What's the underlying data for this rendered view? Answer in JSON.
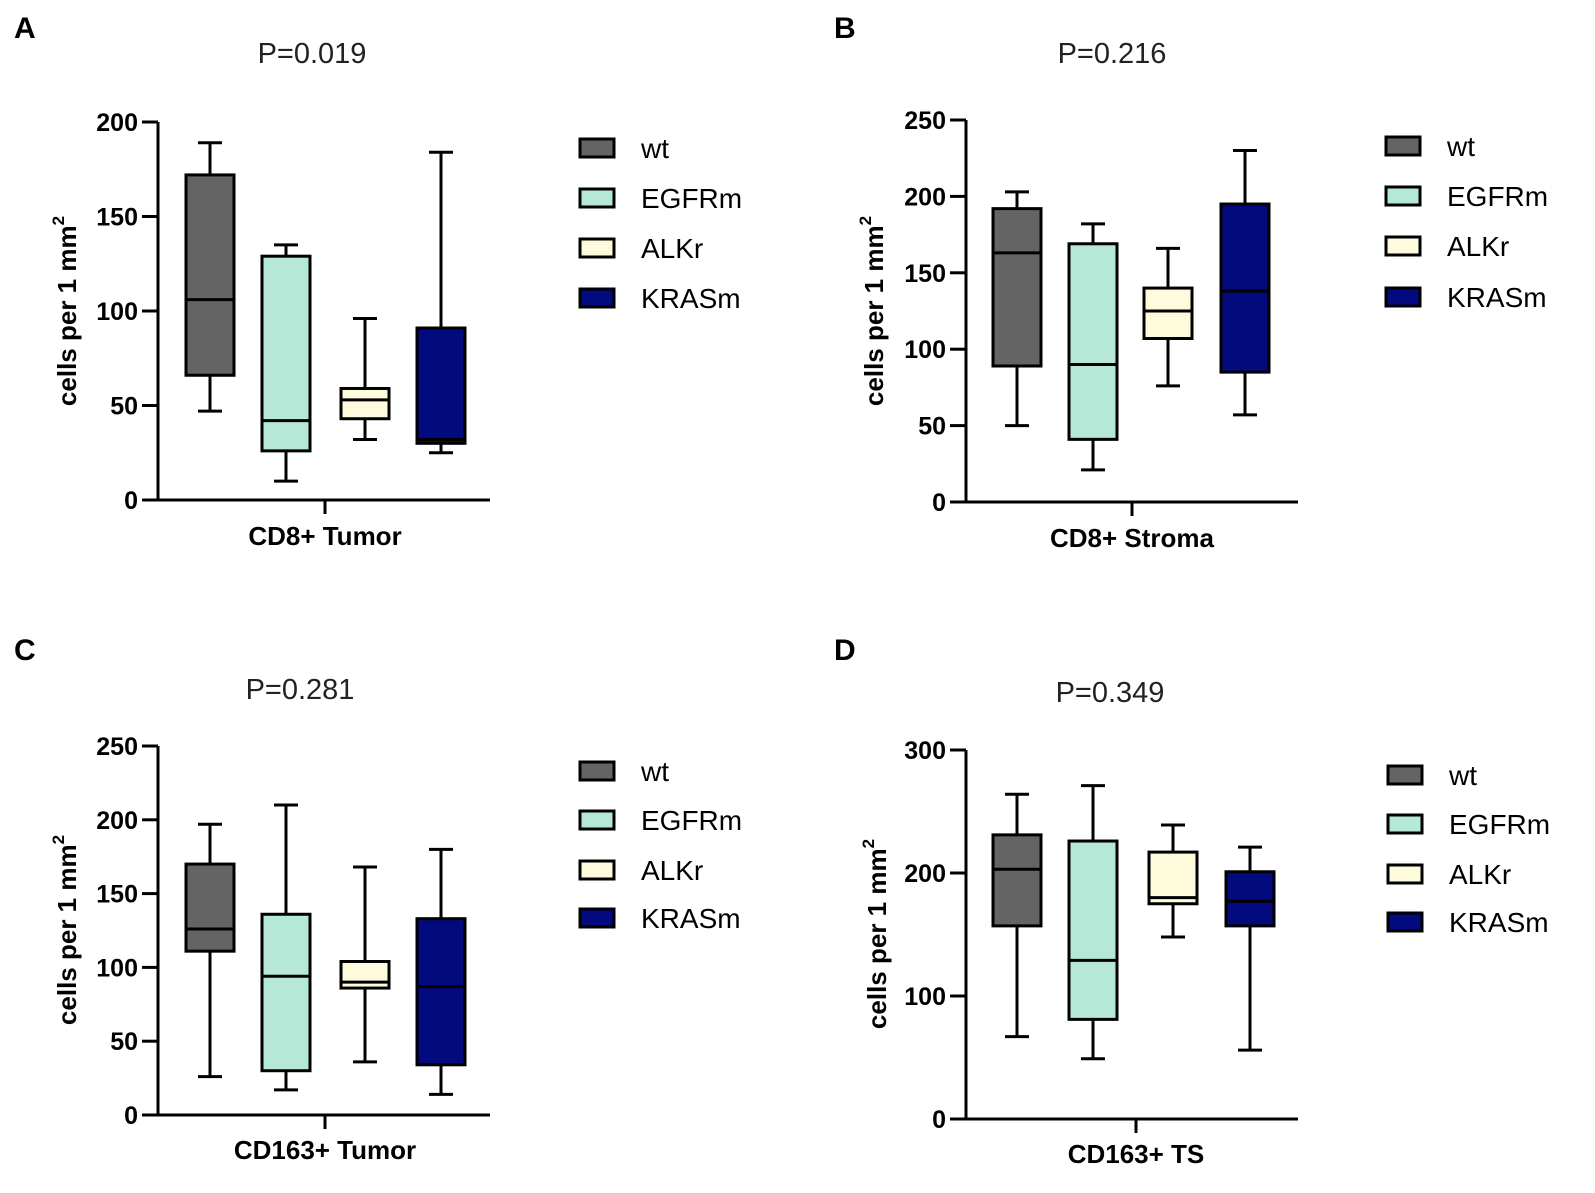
{
  "colors": {
    "wt": "#646464",
    "EGFRm": "#b5e8d6",
    "ALKr": "#fdfbdc",
    "KRASm": "#020a7e",
    "stroke": "#000000"
  },
  "chart_data": [
    {
      "panel": "A",
      "type": "box",
      "title": "P=0.019",
      "xlabel": "CD8+ Tumor",
      "ylabel": "cells per 1 mm",
      "ylabel_sup": "2",
      "ylim": [
        0,
        200
      ],
      "yticks": [
        0,
        50,
        100,
        150,
        200
      ],
      "legend": [
        "wt",
        "EGFRm",
        "ALKr",
        "KRASm"
      ],
      "series": [
        {
          "name": "wt",
          "min": 47,
          "q1": 66,
          "median": 106,
          "q3": 172,
          "max": 189
        },
        {
          "name": "EGFRm",
          "min": 10,
          "q1": 26,
          "median": 42,
          "q3": 129,
          "max": 135
        },
        {
          "name": "ALKr",
          "min": 32,
          "q1": 43,
          "median": 53,
          "q3": 59,
          "max": 96
        },
        {
          "name": "KRASm",
          "min": 25,
          "q1": 30,
          "median": 32,
          "q3": 91,
          "max": 184
        }
      ]
    },
    {
      "panel": "B",
      "type": "box",
      "title": "P=0.216",
      "xlabel": "CD8+ Stroma",
      "ylabel": "cells per 1 mm",
      "ylabel_sup": "2",
      "ylim": [
        0,
        250
      ],
      "yticks": [
        0,
        50,
        100,
        150,
        200,
        250
      ],
      "legend": [
        "wt",
        "EGFRm",
        "ALKr",
        "KRASm"
      ],
      "series": [
        {
          "name": "wt",
          "min": 50,
          "q1": 89,
          "median": 163,
          "q3": 192,
          "max": 203
        },
        {
          "name": "EGFRm",
          "min": 21,
          "q1": 41,
          "median": 90,
          "q3": 169,
          "max": 182
        },
        {
          "name": "ALKr",
          "min": 76,
          "q1": 107,
          "median": 125,
          "q3": 140,
          "max": 166
        },
        {
          "name": "KRASm",
          "min": 57,
          "q1": 85,
          "median": 138,
          "q3": 195,
          "max": 230
        }
      ]
    },
    {
      "panel": "C",
      "type": "box",
      "title": "P=0.281",
      "xlabel": "CD163+ Tumor",
      "ylabel": "cells per 1 mm",
      "ylabel_sup": "2",
      "ylim": [
        0,
        250
      ],
      "yticks": [
        0,
        50,
        100,
        150,
        200,
        250
      ],
      "legend": [
        "wt",
        "EGFRm",
        "ALKr",
        "KRASm"
      ],
      "series": [
        {
          "name": "wt",
          "min": 26,
          "q1": 111,
          "median": 126,
          "q3": 170,
          "max": 197
        },
        {
          "name": "EGFRm",
          "min": 17,
          "q1": 30,
          "median": 94,
          "q3": 136,
          "max": 210
        },
        {
          "name": "ALKr",
          "min": 36,
          "q1": 86,
          "median": 90,
          "q3": 104,
          "max": 168
        },
        {
          "name": "KRASm",
          "min": 14,
          "q1": 34,
          "median": 87,
          "q3": 133,
          "max": 180
        }
      ]
    },
    {
      "panel": "D",
      "type": "box",
      "title": "P=0.349",
      "xlabel": "CD163+ TS",
      "ylabel": "cells per 1 mm",
      "ylabel_sup": "2",
      "ylim": [
        0,
        300
      ],
      "yticks": [
        0,
        100,
        200,
        300
      ],
      "legend": [
        "wt",
        "EGFRm",
        "ALKr",
        "KRASm"
      ],
      "series": [
        {
          "name": "wt",
          "min": 67,
          "q1": 157,
          "median": 203,
          "q3": 231,
          "max": 264
        },
        {
          "name": "EGFRm",
          "min": 49,
          "q1": 81,
          "median": 129,
          "q3": 226,
          "max": 271
        },
        {
          "name": "ALKr",
          "min": 148,
          "q1": 175,
          "median": 180,
          "q3": 217,
          "max": 239
        },
        {
          "name": "KRASm",
          "min": 56,
          "q1": 157,
          "median": 177,
          "q3": 201,
          "max": 221
        }
      ]
    }
  ]
}
